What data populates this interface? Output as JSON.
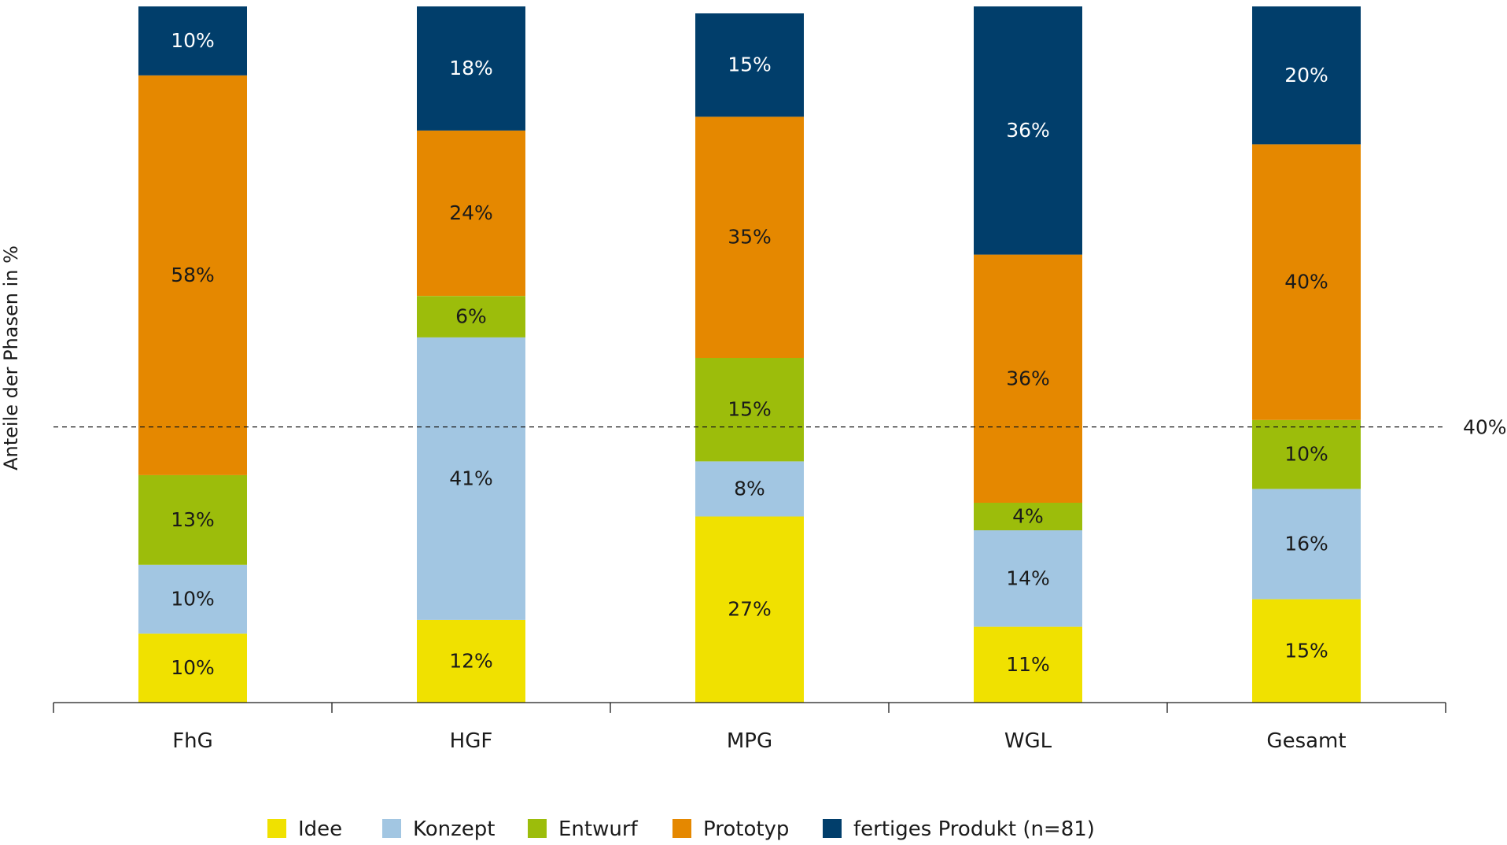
{
  "chart_data": {
    "type": "bar",
    "stacked": true,
    "ylabel": "Anteile der Phasen in %",
    "ylim": [
      0,
      100
    ],
    "categories": [
      "FhG",
      "HGF",
      "MPG",
      "WGL",
      "Gesamt"
    ],
    "series": [
      {
        "name": "Idee",
        "color": "#f0e100",
        "text_color": "#1a1a1a",
        "values": [
          10,
          12,
          27,
          11,
          15
        ]
      },
      {
        "name": "Konzept",
        "color": "#a2c6e2",
        "text_color": "#1a1a1a",
        "values": [
          10,
          41,
          8,
          14,
          16
        ]
      },
      {
        "name": "Entwurf",
        "color": "#9cbd0b",
        "text_color": "#1a1a1a",
        "values": [
          13,
          6,
          15,
          4,
          10
        ]
      },
      {
        "name": "Prototyp",
        "color": "#e58800",
        "text_color": "#1a1a1a",
        "values": [
          58,
          24,
          35,
          36,
          40
        ]
      },
      {
        "name": "fertiges Produkt (n=81)",
        "color": "#013e6b",
        "text_color": "#ffffff",
        "values": [
          10,
          18,
          15,
          36,
          20
        ]
      }
    ],
    "reference_line": {
      "value": 40,
      "label": "40%"
    },
    "value_suffix": "%",
    "legend_position": "bottom"
  }
}
